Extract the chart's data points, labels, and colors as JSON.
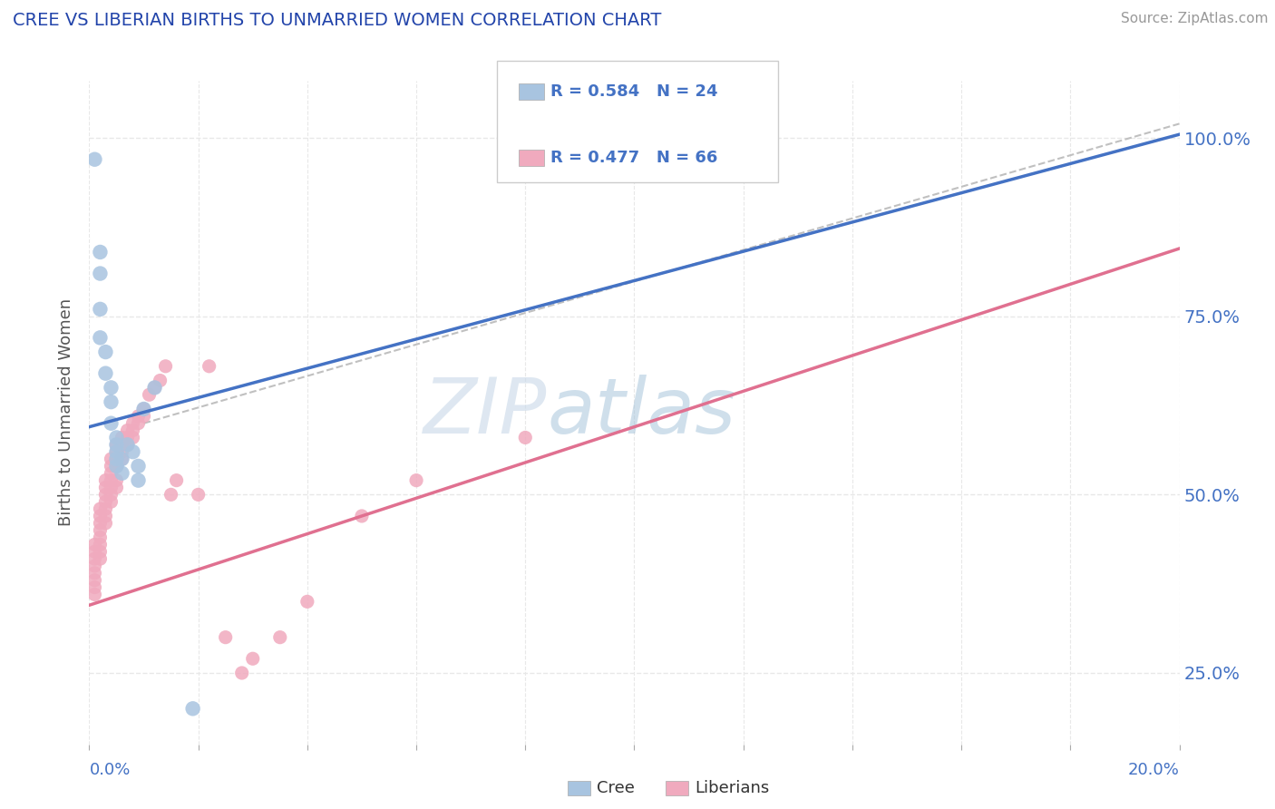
{
  "title": "CREE VS LIBERIAN BIRTHS TO UNMARRIED WOMEN CORRELATION CHART",
  "source": "Source: ZipAtlas.com",
  "ylabel": "Births to Unmarried Women",
  "ytick_labels": [
    "25.0%",
    "50.0%",
    "75.0%",
    "100.0%"
  ],
  "ytick_values": [
    0.25,
    0.5,
    0.75,
    1.0
  ],
  "xlim": [
    0.0,
    0.2
  ],
  "ylim": [
    0.15,
    1.08
  ],
  "cree_color": "#a8c4e0",
  "liberian_color": "#f0aabe",
  "cree_line_color": "#4472c4",
  "liberian_line_color": "#e07090",
  "ref_line_color": "#c0c0c0",
  "legend_text_color": "#4472c4",
  "watermark_zip": "ZIP",
  "watermark_atlas": "atlas",
  "cree_R": 0.584,
  "cree_N": 24,
  "liberian_R": 0.477,
  "liberian_N": 66,
  "cree_points": [
    [
      0.001,
      0.97
    ],
    [
      0.002,
      0.84
    ],
    [
      0.002,
      0.81
    ],
    [
      0.002,
      0.76
    ],
    [
      0.002,
      0.72
    ],
    [
      0.003,
      0.7
    ],
    [
      0.003,
      0.67
    ],
    [
      0.004,
      0.65
    ],
    [
      0.004,
      0.63
    ],
    [
      0.004,
      0.6
    ],
    [
      0.005,
      0.58
    ],
    [
      0.005,
      0.57
    ],
    [
      0.005,
      0.56
    ],
    [
      0.005,
      0.55
    ],
    [
      0.005,
      0.54
    ],
    [
      0.006,
      0.55
    ],
    [
      0.006,
      0.53
    ],
    [
      0.007,
      0.57
    ],
    [
      0.008,
      0.56
    ],
    [
      0.009,
      0.54
    ],
    [
      0.009,
      0.52
    ],
    [
      0.01,
      0.62
    ],
    [
      0.012,
      0.65
    ],
    [
      0.019,
      0.2
    ]
  ],
  "liberian_points": [
    [
      0.001,
      0.43
    ],
    [
      0.001,
      0.42
    ],
    [
      0.001,
      0.41
    ],
    [
      0.001,
      0.4
    ],
    [
      0.001,
      0.39
    ],
    [
      0.001,
      0.38
    ],
    [
      0.001,
      0.37
    ],
    [
      0.001,
      0.36
    ],
    [
      0.002,
      0.48
    ],
    [
      0.002,
      0.47
    ],
    [
      0.002,
      0.46
    ],
    [
      0.002,
      0.45
    ],
    [
      0.002,
      0.44
    ],
    [
      0.002,
      0.43
    ],
    [
      0.002,
      0.42
    ],
    [
      0.002,
      0.41
    ],
    [
      0.003,
      0.52
    ],
    [
      0.003,
      0.51
    ],
    [
      0.003,
      0.5
    ],
    [
      0.003,
      0.49
    ],
    [
      0.003,
      0.48
    ],
    [
      0.003,
      0.47
    ],
    [
      0.003,
      0.46
    ],
    [
      0.004,
      0.55
    ],
    [
      0.004,
      0.54
    ],
    [
      0.004,
      0.53
    ],
    [
      0.004,
      0.52
    ],
    [
      0.004,
      0.51
    ],
    [
      0.004,
      0.5
    ],
    [
      0.004,
      0.49
    ],
    [
      0.005,
      0.57
    ],
    [
      0.005,
      0.56
    ],
    [
      0.005,
      0.55
    ],
    [
      0.005,
      0.54
    ],
    [
      0.005,
      0.52
    ],
    [
      0.005,
      0.51
    ],
    [
      0.006,
      0.58
    ],
    [
      0.006,
      0.57
    ],
    [
      0.006,
      0.56
    ],
    [
      0.006,
      0.55
    ],
    [
      0.007,
      0.59
    ],
    [
      0.007,
      0.58
    ],
    [
      0.007,
      0.57
    ],
    [
      0.008,
      0.6
    ],
    [
      0.008,
      0.59
    ],
    [
      0.008,
      0.58
    ],
    [
      0.009,
      0.61
    ],
    [
      0.009,
      0.6
    ],
    [
      0.01,
      0.62
    ],
    [
      0.01,
      0.61
    ],
    [
      0.011,
      0.64
    ],
    [
      0.012,
      0.65
    ],
    [
      0.013,
      0.66
    ],
    [
      0.014,
      0.68
    ],
    [
      0.015,
      0.5
    ],
    [
      0.016,
      0.52
    ],
    [
      0.02,
      0.5
    ],
    [
      0.022,
      0.68
    ],
    [
      0.025,
      0.3
    ],
    [
      0.028,
      0.25
    ],
    [
      0.03,
      0.27
    ],
    [
      0.035,
      0.3
    ],
    [
      0.04,
      0.35
    ],
    [
      0.05,
      0.47
    ],
    [
      0.06,
      0.52
    ],
    [
      0.08,
      0.58
    ]
  ],
  "cree_line_x": [
    0.0,
    0.2
  ],
  "cree_line_y": [
    0.595,
    1.005
  ],
  "liberian_line_x": [
    0.0,
    0.2
  ],
  "liberian_line_y": [
    0.345,
    0.845
  ],
  "ref_line_x": [
    0.01,
    0.2
  ],
  "ref_line_y": [
    0.6,
    1.02
  ],
  "grid_color": "#e8e8e8",
  "grid_style": "--"
}
